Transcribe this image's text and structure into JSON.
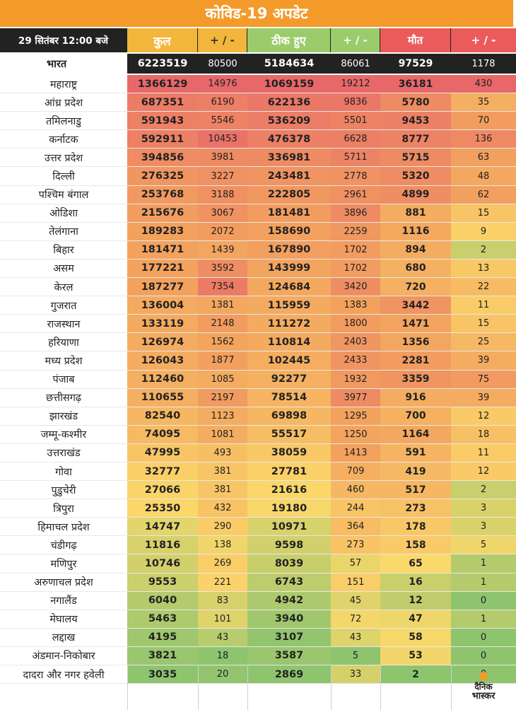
{
  "title": "कोविड-19 अपडेट",
  "header": {
    "date": "29 सितंबर  12:00 बजे",
    "total": "कुल",
    "pm1": "+ / -",
    "recovered": "ठीक हुए",
    "pm2": "+ / -",
    "deaths": "मौत",
    "pm3": "+ / -"
  },
  "india": {
    "name": "भारत",
    "total": "6223519",
    "total_change": "80500",
    "recovered": "5184634",
    "recovered_change": "86061",
    "deaths": "97529",
    "deaths_change": "1178"
  },
  "rows": [
    {
      "name": "महाराष्ट्र",
      "total": "1366129",
      "pm1": "14976",
      "rec": "1069159",
      "pm2": "19212",
      "death": "36181",
      "pm3": "430"
    },
    {
      "name": "आंध्र प्रदेश",
      "total": "687351",
      "pm1": "6190",
      "rec": "622136",
      "pm2": "9836",
      "death": "5780",
      "pm3": "35"
    },
    {
      "name": "तमिलनाडु",
      "total": "591943",
      "pm1": "5546",
      "rec": "536209",
      "pm2": "5501",
      "death": "9453",
      "pm3": "70"
    },
    {
      "name": "कर्नाटक",
      "total": "592911",
      "pm1": "10453",
      "rec": "476378",
      "pm2": "6628",
      "death": "8777",
      "pm3": "136"
    },
    {
      "name": "उत्तर प्रदेश",
      "total": "394856",
      "pm1": "3981",
      "rec": "336981",
      "pm2": "5711",
      "death": "5715",
      "pm3": "63"
    },
    {
      "name": "दिल्ली",
      "total": "276325",
      "pm1": "3227",
      "rec": "243481",
      "pm2": "2778",
      "death": "5320",
      "pm3": "48"
    },
    {
      "name": "पश्चिम बंगाल",
      "total": "253768",
      "pm1": "3188",
      "rec": "222805",
      "pm2": "2961",
      "death": "4899",
      "pm3": "62"
    },
    {
      "name": "ओडिशा",
      "total": "215676",
      "pm1": "3067",
      "rec": "181481",
      "pm2": "3896",
      "death": "881",
      "pm3": "15"
    },
    {
      "name": "तेलंगाना",
      "total": "189283",
      "pm1": "2072",
      "rec": "158690",
      "pm2": "2259",
      "death": "1116",
      "pm3": "9"
    },
    {
      "name": "बिहार",
      "total": "181471",
      "pm1": "1439",
      "rec": "167890",
      "pm2": "1702",
      "death": "894",
      "pm3": "2"
    },
    {
      "name": "असम",
      "total": "177221",
      "pm1": "3592",
      "rec": "143999",
      "pm2": "1702",
      "death": "680",
      "pm3": "13"
    },
    {
      "name": "केरल",
      "total": "187277",
      "pm1": "7354",
      "rec": "124684",
      "pm2": "3420",
      "death": "720",
      "pm3": "22"
    },
    {
      "name": "गुजरात",
      "total": "136004",
      "pm1": "1381",
      "rec": "115959",
      "pm2": "1383",
      "death": "3442",
      "pm3": "11"
    },
    {
      "name": "राजस्थान",
      "total": "133119",
      "pm1": "2148",
      "rec": "111272",
      "pm2": "1800",
      "death": "1471",
      "pm3": "15"
    },
    {
      "name": "हरियाणा",
      "total": "126974",
      "pm1": "1562",
      "rec": "110814",
      "pm2": "2403",
      "death": "1356",
      "pm3": "25"
    },
    {
      "name": "मध्य प्रदेश",
      "total": "126043",
      "pm1": "1877",
      "rec": "102445",
      "pm2": "2433",
      "death": "2281",
      "pm3": "39"
    },
    {
      "name": "पंजाब",
      "total": "112460",
      "pm1": "1085",
      "rec": "92277",
      "pm2": "1932",
      "death": "3359",
      "pm3": "75"
    },
    {
      "name": "छत्तीसगढ़",
      "total": "110655",
      "pm1": "2197",
      "rec": "78514",
      "pm2": "3977",
      "death": "916",
      "pm3": "39"
    },
    {
      "name": "झारखंड",
      "total": "82540",
      "pm1": "1123",
      "rec": "69898",
      "pm2": "1295",
      "death": "700",
      "pm3": "12"
    },
    {
      "name": "जम्मू-कश्मीर",
      "total": "74095",
      "pm1": "1081",
      "rec": "55517",
      "pm2": "1250",
      "death": "1164",
      "pm3": "18"
    },
    {
      "name": "उत्तराखंड",
      "total": "47995",
      "pm1": "493",
      "rec": "38059",
      "pm2": "1413",
      "death": "591",
      "pm3": "11"
    },
    {
      "name": "गोवा",
      "total": "32777",
      "pm1": "381",
      "rec": "27781",
      "pm2": "709",
      "death": "419",
      "pm3": "12"
    },
    {
      "name": "पुडुचेरी",
      "total": "27066",
      "pm1": "381",
      "rec": "21616",
      "pm2": "460",
      "death": "517",
      "pm3": "2"
    },
    {
      "name": "त्रिपुरा",
      "total": "25350",
      "pm1": "432",
      "rec": "19180",
      "pm2": "244",
      "death": "273",
      "pm3": "3"
    },
    {
      "name": "हिमाचल प्रदेश",
      "total": "14747",
      "pm1": "290",
      "rec": "10971",
      "pm2": "364",
      "death": "178",
      "pm3": "3"
    },
    {
      "name": "चंडीगढ़",
      "total": "11816",
      "pm1": "138",
      "rec": "9598",
      "pm2": "273",
      "death": "158",
      "pm3": "5"
    },
    {
      "name": "मणिपुर",
      "total": "10746",
      "pm1": "269",
      "rec": "8039",
      "pm2": "57",
      "death": "65",
      "pm3": "1"
    },
    {
      "name": "अरुणाचल प्रदेश",
      "total": "9553",
      "pm1": "221",
      "rec": "6743",
      "pm2": "151",
      "death": "16",
      "pm3": "1"
    },
    {
      "name": "नगालैंड",
      "total": "6040",
      "pm1": "83",
      "rec": "4942",
      "pm2": "45",
      "death": "12",
      "pm3": "0"
    },
    {
      "name": "मेघालय",
      "total": "5463",
      "pm1": "101",
      "rec": "3940",
      "pm2": "72",
      "death": "47",
      "pm3": "1"
    },
    {
      "name": "लद्दाख",
      "total": "4195",
      "pm1": "43",
      "rec": "3107",
      "pm2": "43",
      "death": "58",
      "pm3": "0"
    },
    {
      "name": "अंडमान-निकोबार",
      "total": "3821",
      "pm1": "18",
      "rec": "3587",
      "pm2": "5",
      "death": "53",
      "pm3": "0"
    },
    {
      "name": "दादरा और नगर हवेली",
      "total": "3035",
      "pm1": "20",
      "rec": "2869",
      "pm2": "33",
      "death": "2",
      "pm3": "0"
    }
  ],
  "colors": {
    "title_bg": "#f49a2a",
    "red": "#e8686a",
    "orange": "#f3a35e",
    "yellow": "#fbd86a",
    "green": "#8ec46e",
    "pale": "#fbe6cf"
  },
  "logo": {
    "line1": "दैनिक",
    "line2": "भास्कर"
  }
}
